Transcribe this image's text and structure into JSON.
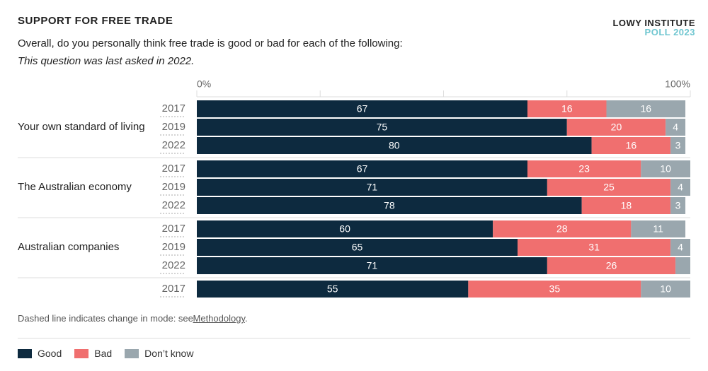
{
  "chart_data": {
    "type": "stacked-bar-grouped",
    "title": "SUPPORT FOR FREE TRADE",
    "subtitle": "Overall, do you personally think free trade is good or bad for each of the following:",
    "note": "This question was last asked in 2022.",
    "brand": "LOWY INSTITUTE",
    "brand_sub": "POLL 2023",
    "footnote": {
      "text": "Dashed line indicates change in mode: see",
      "link": "Methodology",
      "end": "."
    },
    "xlim": [
      0,
      100
    ],
    "xticks": [
      {
        "value": 0,
        "label": "0%"
      },
      {
        "value": 25,
        "label": null
      },
      {
        "value": 50,
        "label": null
      },
      {
        "value": 75,
        "label": null
      },
      {
        "value": 100,
        "label": "100%"
      }
    ],
    "series": [
      {
        "name": "Good",
        "color": "#0d2a3f"
      },
      {
        "name": "Bad",
        "color": "#f06f6f"
      },
      {
        "name": "Don’t know",
        "color": "#9aa7ae"
      }
    ],
    "groups": [
      {
        "name": "Your own standard of living",
        "categories": [
          "2017",
          "2019",
          "2022"
        ],
        "values": [
          [
            67,
            16,
            16
          ],
          [
            75,
            20,
            4
          ],
          [
            80,
            16,
            3
          ]
        ]
      },
      {
        "name": "The Australian economy",
        "categories": [
          "2017",
          "2019",
          "2022"
        ],
        "values": [
          [
            67,
            23,
            10
          ],
          [
            71,
            25,
            4
          ],
          [
            78,
            18,
            3
          ]
        ]
      },
      {
        "name": "Australian companies",
        "categories": [
          "2017",
          "2019",
          "2022"
        ],
        "values": [
          [
            60,
            28,
            11
          ],
          [
            65,
            31,
            4
          ],
          [
            71,
            26,
            3
          ]
        ],
        "value_labels": [
          [
            "60",
            "28",
            "11"
          ],
          [
            "65",
            "31",
            "4"
          ],
          [
            "71",
            "26",
            null
          ]
        ]
      },
      {
        "name": null,
        "categories": [
          "2017"
        ],
        "values": [
          [
            55,
            35,
            10
          ]
        ]
      }
    ]
  }
}
